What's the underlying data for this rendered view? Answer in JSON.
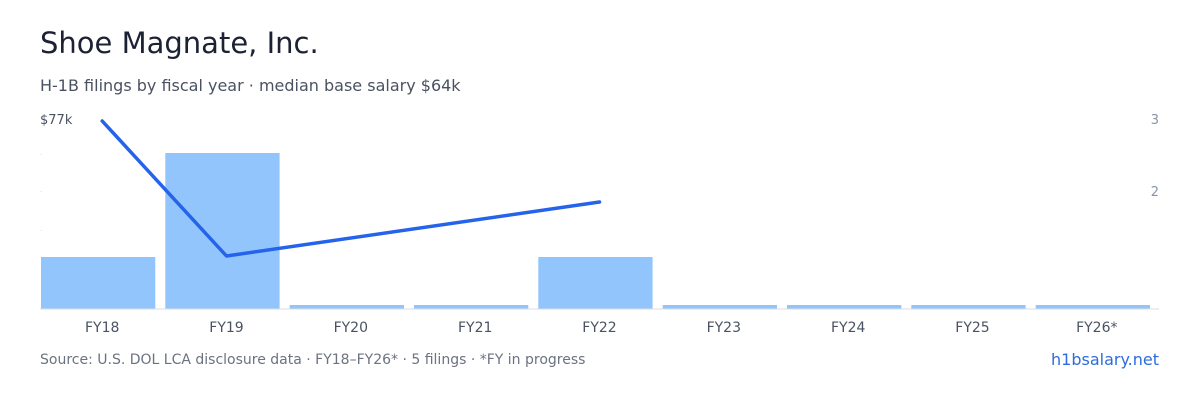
{
  "header": {
    "title": "Shoe Magnate, Inc.",
    "subtitle": "H-1B filings by fiscal year · median base salary $64k"
  },
  "footer": {
    "source": "Source: U.S. DOL LCA disclosure data · FY18–FY26* · 5 filings · *FY in progress",
    "link": "h1bsalary.net"
  },
  "colors": {
    "bar": "#93c5fd",
    "line": "#2563eb",
    "axis_text": "#4a5262",
    "right_tick": "#8b95a7",
    "baseline": "#d9dce1"
  },
  "chart_data": {
    "type": "bar",
    "categories": [
      "FY18",
      "FY19",
      "FY20",
      "FY21",
      "FY22",
      "FY23",
      "FY24",
      "FY25",
      "FY26*"
    ],
    "series": [
      {
        "type": "bar",
        "axis": "right",
        "values": [
          1,
          3,
          0,
          0,
          1,
          0,
          0,
          0,
          0
        ]
      },
      {
        "type": "line",
        "axis": "left",
        "values": [
          77000,
          62000,
          null,
          null,
          68000,
          null,
          null,
          null,
          null
        ]
      }
    ],
    "y_left": {
      "top_label": "$77k",
      "max": 77000
    },
    "y_right": {
      "ticks": [
        "3",
        "2"
      ]
    },
    "grid": false
  }
}
